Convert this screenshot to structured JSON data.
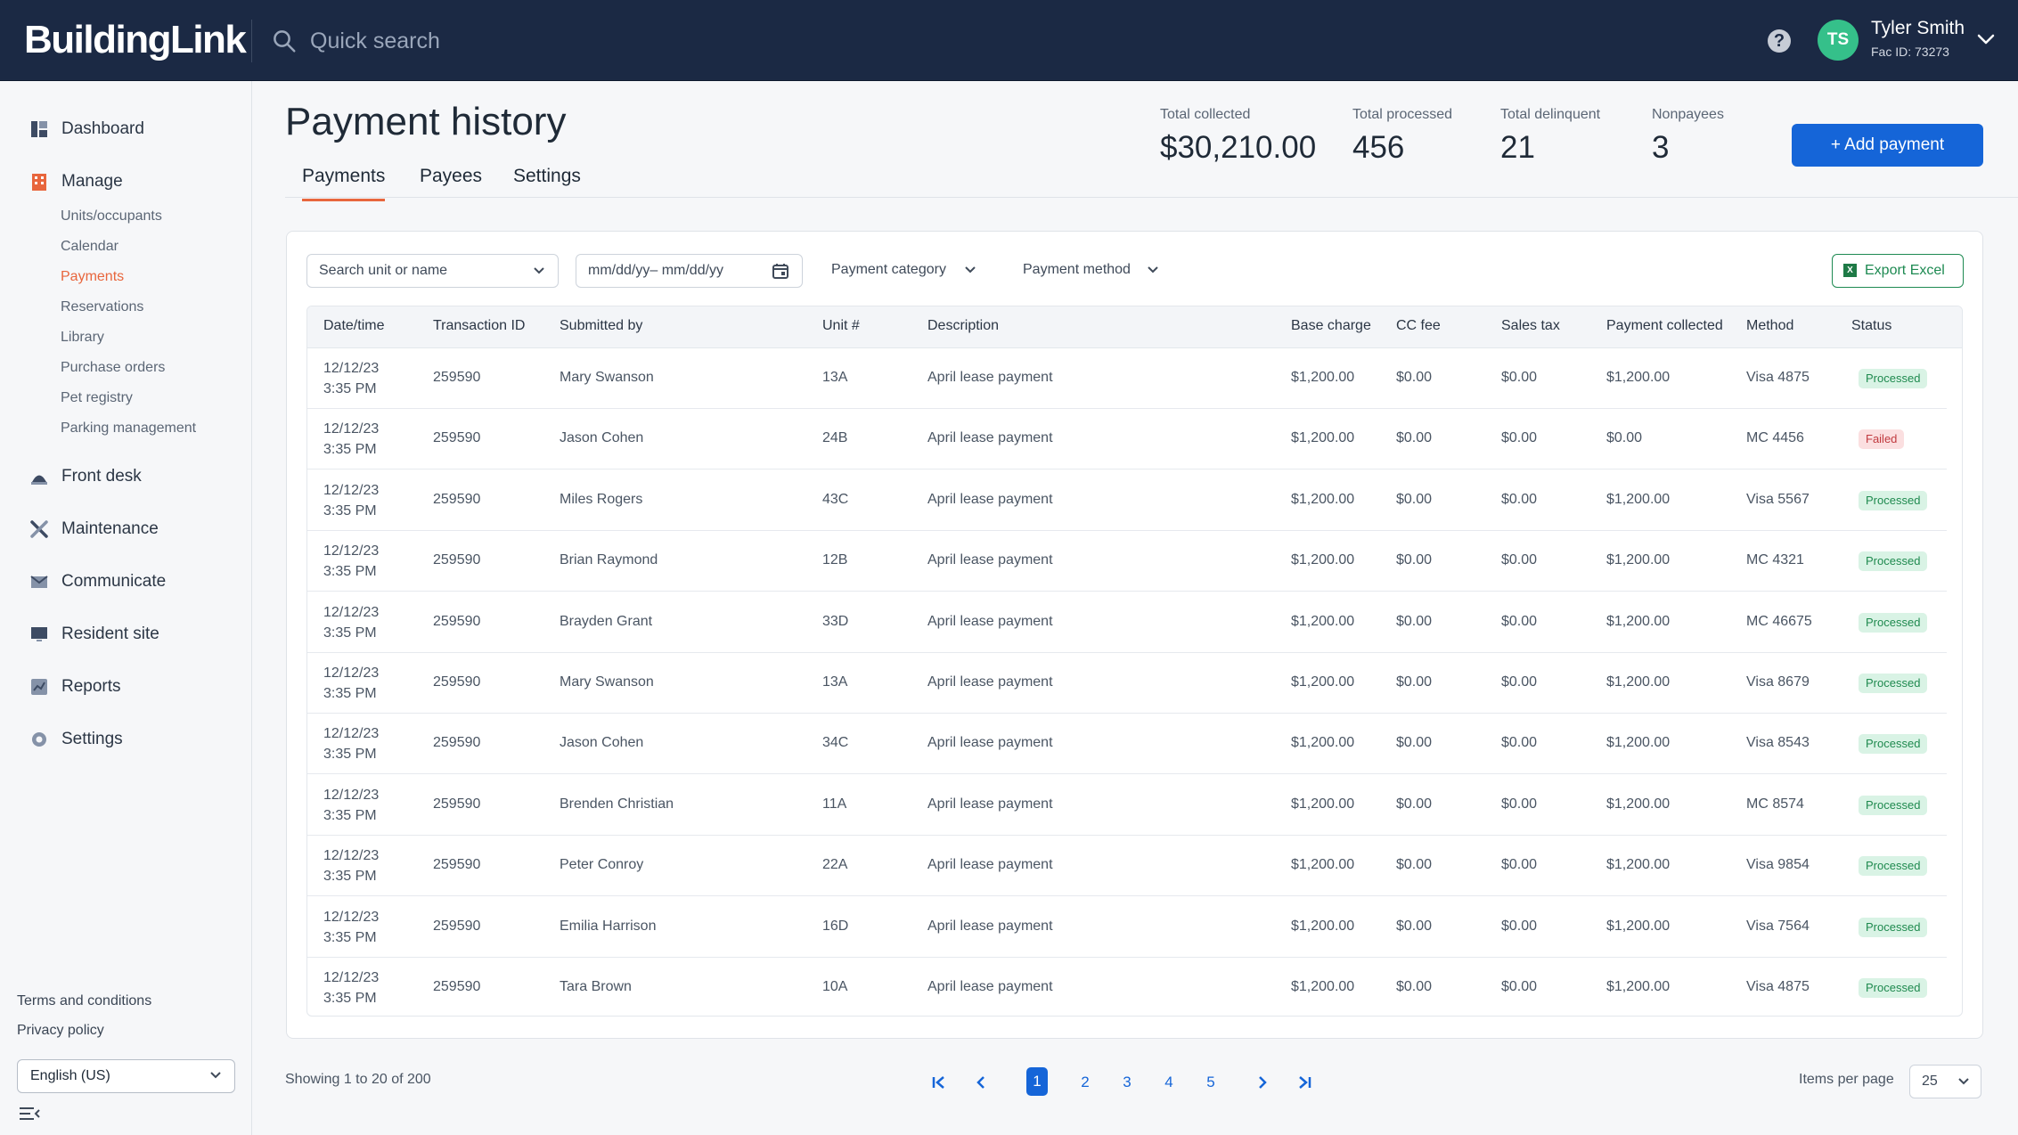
{
  "app": {
    "logo": "BuildingLink"
  },
  "search": {
    "placeholder": "Quick search"
  },
  "user": {
    "initials": "TS",
    "name": "Tyler Smith",
    "fac": "Fac ID: 73273"
  },
  "help": {
    "label": "?"
  },
  "colors": {
    "navy": "#1b2944",
    "accent": "#e8663d",
    "primary": "#1565d8",
    "success": "#1f8a4f",
    "danger": "#c03a3f"
  },
  "sidebar": {
    "main": [
      {
        "label": "Dashboard",
        "icon": "dashboard-icon"
      },
      {
        "label": "Manage",
        "icon": "building-icon"
      },
      {
        "label": "Front desk",
        "icon": "bell-icon"
      },
      {
        "label": "Maintenance",
        "icon": "tools-icon"
      },
      {
        "label": "Communicate",
        "icon": "mail-icon"
      },
      {
        "label": "Resident site",
        "icon": "monitor-icon"
      },
      {
        "label": "Reports",
        "icon": "chart-icon"
      },
      {
        "label": "Settings",
        "icon": "gear-icon"
      }
    ],
    "manage_sub": [
      "Units/occupants",
      "Calendar",
      "Payments",
      "Reservations",
      "Library",
      "Purchase orders",
      "Pet registry",
      "Parking management"
    ],
    "footer": {
      "terms": "Terms and conditions",
      "privacy": "Privacy policy",
      "language": "English (US)"
    }
  },
  "page": {
    "title": "Payment history",
    "tabs": [
      "Payments",
      "Payees",
      "Settings"
    ],
    "stats": [
      {
        "label": "Total collected",
        "value": "$30,210.00"
      },
      {
        "label": "Total processed",
        "value": "456"
      },
      {
        "label": "Total delinquent",
        "value": "21"
      },
      {
        "label": "Nonpayees",
        "value": "3"
      }
    ],
    "add_button": "+ Add payment"
  },
  "filters": {
    "search_placeholder": "Search unit or name",
    "date_placeholder": "mm/dd/yy– mm/dd/yy",
    "category": "Payment category",
    "method": "Payment method",
    "export": "Export Excel"
  },
  "table": {
    "columns": [
      "Date/time",
      "Transaction ID",
      "Submitted by",
      "Unit #",
      "Description",
      "Base charge",
      "CC fee",
      "Sales tax",
      "Payment collected",
      "Method",
      "Status"
    ],
    "rows": [
      {
        "date": "12/12/23",
        "time": "3:35 PM",
        "txn": "259590",
        "by": "Mary Swanson",
        "unit": "13A",
        "desc": "April lease payment",
        "base": "$1,200.00",
        "cc": "$0.00",
        "tax": "$0.00",
        "collected": "$1,200.00",
        "method": "Visa 4875",
        "status": "Processed"
      },
      {
        "date": "12/12/23",
        "time": "3:35 PM",
        "txn": "259590",
        "by": "Jason Cohen",
        "unit": "24B",
        "desc": "April lease payment",
        "base": "$1,200.00",
        "cc": "$0.00",
        "tax": "$0.00",
        "collected": "$0.00",
        "method": "MC 4456",
        "status": "Failed"
      },
      {
        "date": "12/12/23",
        "time": "3:35 PM",
        "txn": "259590",
        "by": "Miles Rogers",
        "unit": "43C",
        "desc": "April lease payment",
        "base": "$1,200.00",
        "cc": "$0.00",
        "tax": "$0.00",
        "collected": "$1,200.00",
        "method": "Visa 5567",
        "status": "Processed"
      },
      {
        "date": "12/12/23",
        "time": "3:35 PM",
        "txn": "259590",
        "by": "Brian Raymond",
        "unit": "12B",
        "desc": "April lease payment",
        "base": "$1,200.00",
        "cc": "$0.00",
        "tax": "$0.00",
        "collected": "$1,200.00",
        "method": "MC 4321",
        "status": "Processed"
      },
      {
        "date": "12/12/23",
        "time": "3:35 PM",
        "txn": "259590",
        "by": "Brayden Grant",
        "unit": "33D",
        "desc": "April lease payment",
        "base": "$1,200.00",
        "cc": "$0.00",
        "tax": "$0.00",
        "collected": "$1,200.00",
        "method": "MC 46675",
        "status": "Processed"
      },
      {
        "date": "12/12/23",
        "time": "3:35 PM",
        "txn": "259590",
        "by": "Mary Swanson",
        "unit": "13A",
        "desc": "April lease payment",
        "base": "$1,200.00",
        "cc": "$0.00",
        "tax": "$0.00",
        "collected": "$1,200.00",
        "method": "Visa 8679",
        "status": "Processed"
      },
      {
        "date": "12/12/23",
        "time": "3:35 PM",
        "txn": "259590",
        "by": "Jason Cohen",
        "unit": "34C",
        "desc": "April lease payment",
        "base": "$1,200.00",
        "cc": "$0.00",
        "tax": "$0.00",
        "collected": "$1,200.00",
        "method": "Visa 8543",
        "status": "Processed"
      },
      {
        "date": "12/12/23",
        "time": "3:35 PM",
        "txn": "259590",
        "by": "Brenden Christian",
        "unit": "11A",
        "desc": "April lease payment",
        "base": "$1,200.00",
        "cc": "$0.00",
        "tax": "$0.00",
        "collected": "$1,200.00",
        "method": "MC 8574",
        "status": "Processed"
      },
      {
        "date": "12/12/23",
        "time": "3:35 PM",
        "txn": "259590",
        "by": "Peter Conroy",
        "unit": "22A",
        "desc": "April lease payment",
        "base": "$1,200.00",
        "cc": "$0.00",
        "tax": "$0.00",
        "collected": "$1,200.00",
        "method": "Visa 9854",
        "status": "Processed"
      },
      {
        "date": "12/12/23",
        "time": "3:35 PM",
        "txn": "259590",
        "by": "Emilia Harrison",
        "unit": "16D",
        "desc": "April lease payment",
        "base": "$1,200.00",
        "cc": "$0.00",
        "tax": "$0.00",
        "collected": "$1,200.00",
        "method": "Visa 7564",
        "status": "Processed"
      },
      {
        "date": "12/12/23",
        "time": "3:35 PM",
        "txn": "259590",
        "by": "Tara Brown",
        "unit": "10A",
        "desc": "April lease payment",
        "base": "$1,200.00",
        "cc": "$0.00",
        "tax": "$0.00",
        "collected": "$1,200.00",
        "method": "Visa 4875",
        "status": "Processed"
      }
    ]
  },
  "pagination": {
    "showing": "Showing 1 to 20  of 200",
    "pages": [
      "1",
      "2",
      "3",
      "4",
      "5"
    ],
    "current": "1",
    "items_per_page_label": "Items per page",
    "items_per_page": "25"
  }
}
